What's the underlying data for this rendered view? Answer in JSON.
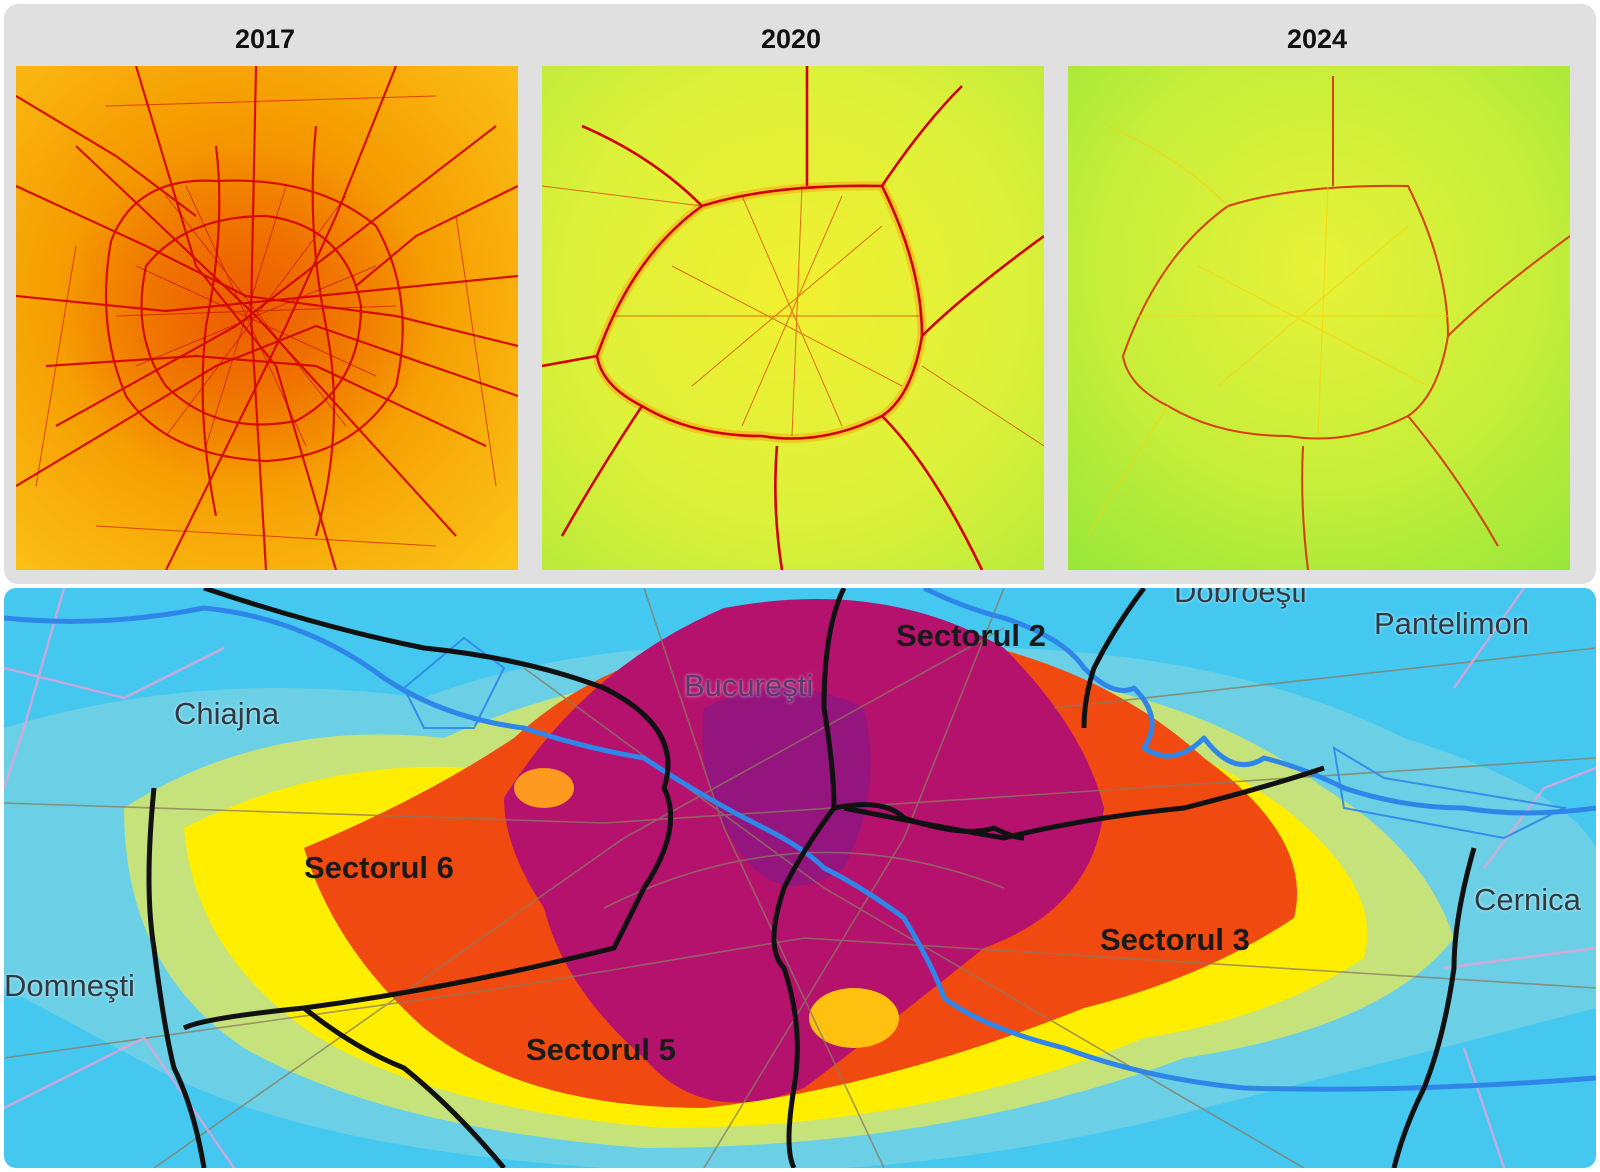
{
  "colors": {
    "panel_bg": "#e0e0e0",
    "road_red": "#d40000",
    "map_2017_base": "#f5a200",
    "map_2020_base": "#e8f226",
    "map_2024_base": "#b8ec2e",
    "pollution_high": "#b5126e",
    "pollution_medium": "#f04a10",
    "pollution_low": "#ffee00",
    "clean_air": "#45c8f0",
    "river": "#2f86e8",
    "boundary": "#111111"
  },
  "comparison_panels": [
    {
      "year": "2017",
      "icon": "no2-concentration-map-2017"
    },
    {
      "year": "2020",
      "icon": "no2-concentration-map-2020"
    },
    {
      "year": "2024",
      "icon": "no2-concentration-map-2024"
    }
  ],
  "bucharest_map": {
    "places": {
      "chiajna": "Chiajna",
      "domnesti": "Domneşti",
      "bucuresti": "Bucureşti",
      "dobroesti": "Dobroeşti",
      "pantelimon": "Pantelimon",
      "cernica": "Cernica"
    },
    "sectors": {
      "s2": "Sectorul 2",
      "s3": "Sectorul 3",
      "s5": "Sectorul 5",
      "s6": "Sectorul 6"
    }
  }
}
